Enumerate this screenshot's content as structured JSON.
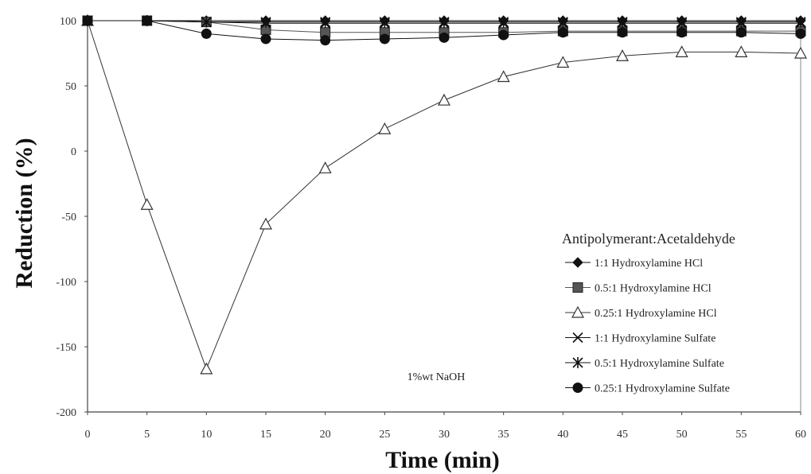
{
  "chart_data": {
    "type": "line",
    "xlabel": "Time (min)",
    "ylabel": "Reduction (%)",
    "xlim": [
      0,
      60
    ],
    "ylim": [
      -200,
      100
    ],
    "xticks": [
      "0",
      "5",
      "10",
      "15",
      "20",
      "25",
      "30",
      "35",
      "40",
      "45",
      "50",
      "55",
      "60"
    ],
    "yticks": [
      "100",
      "50",
      "0",
      "-50",
      "-100",
      "-150",
      "-200"
    ],
    "x": [
      0,
      5,
      10,
      15,
      20,
      25,
      30,
      35,
      40,
      45,
      50,
      55,
      60
    ],
    "grid": false,
    "legend": {
      "title": "Antipolymerant:Acetaldehyde",
      "position": "bottom-right"
    },
    "annotation": "1%wt NaOH",
    "series": [
      {
        "name": "1:1 Hydroxylamine HCl",
        "marker": "diamond-filled",
        "color": "#111111",
        "values": [
          100,
          100,
          100,
          100,
          100,
          100,
          100,
          100,
          100,
          100,
          100,
          100,
          100
        ]
      },
      {
        "name": "0.5:1 Hydroxylamine HCl",
        "marker": "square-filled",
        "color": "#555555",
        "values": [
          100,
          100,
          99,
          93,
          91,
          91,
          91,
          91,
          92,
          92,
          92,
          92,
          92
        ]
      },
      {
        "name": "0.25:1 Hydroxylamine HCl",
        "marker": "triangle-open",
        "color": "#333333",
        "values": [
          100,
          -41,
          -167,
          -56,
          -13,
          17,
          39,
          57,
          68,
          73,
          76,
          76,
          75
        ]
      },
      {
        "name": "1:1 Hydroxylamine Sulfate",
        "marker": "x",
        "color": "#111111",
        "values": [
          100,
          100,
          99,
          98,
          98,
          98,
          98,
          98,
          98,
          98,
          98,
          98,
          98
        ]
      },
      {
        "name": "0.5:1 Hydroxylamine Sulfate",
        "marker": "star",
        "color": "#111111",
        "values": [
          100,
          100,
          99,
          99,
          99,
          99,
          99,
          99,
          99,
          99,
          99,
          99,
          99
        ]
      },
      {
        "name": "0.25:1 Hydroxylamine Sulfate",
        "marker": "circle-filled",
        "color": "#111111",
        "values": [
          100,
          100,
          90,
          86,
          85,
          86,
          87,
          89,
          91,
          91,
          91,
          91,
          90
        ]
      }
    ]
  }
}
